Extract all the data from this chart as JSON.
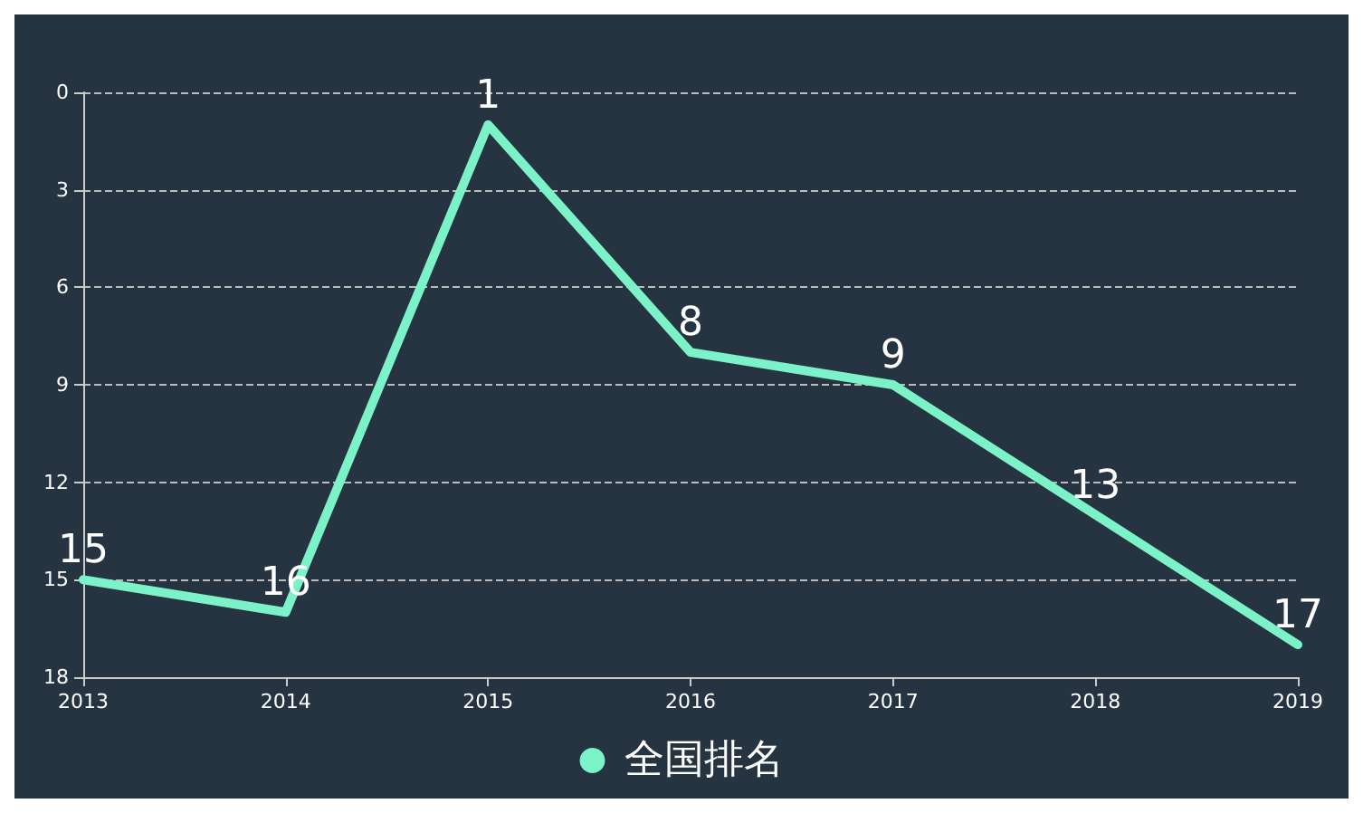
{
  "chart_data": {
    "type": "line",
    "categories": [
      "2013",
      "2014",
      "2015",
      "2016",
      "2017",
      "2018",
      "2019"
    ],
    "series": [
      {
        "name": "全国排名",
        "color": "#7cf2c8",
        "values": [
          15,
          16,
          1,
          8,
          9,
          13,
          17
        ]
      }
    ],
    "ylim": [
      18,
      0
    ],
    "yticks": [
      0,
      3,
      6,
      9,
      12,
      15,
      18
    ],
    "grid": "y",
    "legend": "bottom",
    "data_labels": true,
    "marker": "none",
    "line_style": "solid"
  }
}
